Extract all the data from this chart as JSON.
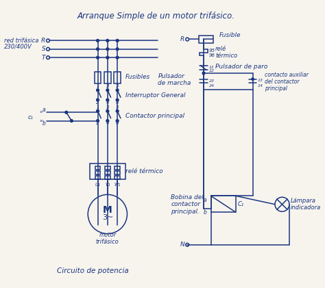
{
  "title": "Arranque Simple de un motor trifásico.",
  "bg_color": "#f7f4ee",
  "line_color": "#1a3580",
  "text_color": "#1a3580",
  "subtitle": "Circuito de potencia",
  "left_label1": "red trifásica",
  "left_label2": "230/400V",
  "phases": [
    "R",
    "S",
    "T"
  ],
  "comp_fusibles": "Fusibles",
  "comp_interruptor": "Interruptor General",
  "comp_contactor": "Contactor principal",
  "comp_rele": "relé térmico",
  "comp_rele_right": "relé\ntérmico",
  "comp_fusible_right": "Fusible",
  "comp_paro": "Pulsador de paro",
  "comp_marcha": "Pulsador\nde marcha",
  "comp_aux": "contacto auxiliar\ndel contactor\nprincipal",
  "comp_bobina": "Bobina del\ncontactor\nprincipal.",
  "comp_lampara": "Lámpara\nindicadora",
  "motor_label": "motor\ntrifásico",
  "figsize": [
    4.74,
    4.21
  ],
  "dpi": 100
}
